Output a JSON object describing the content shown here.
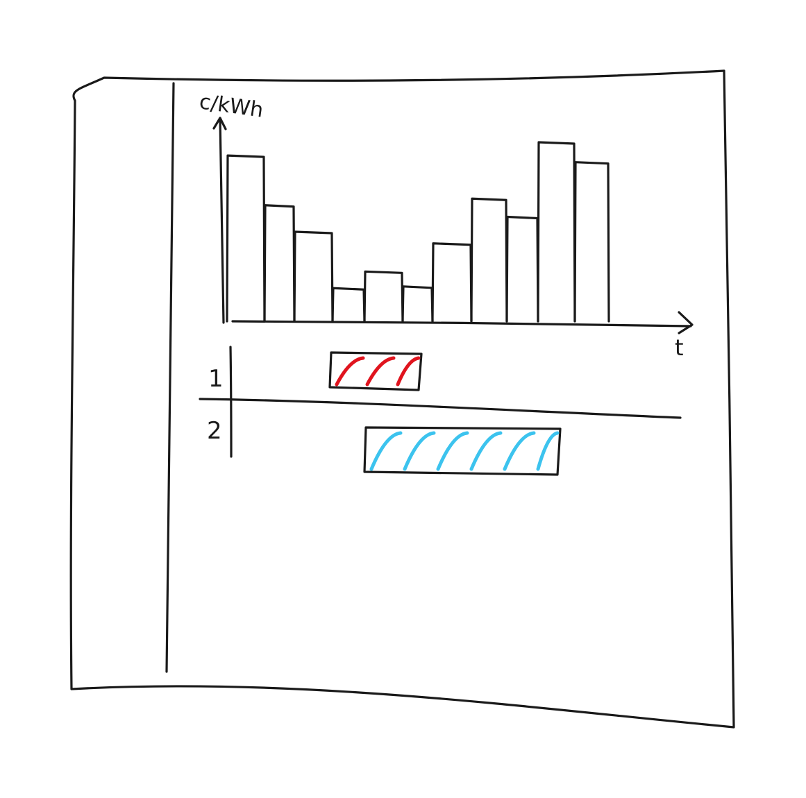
{
  "sketch": {
    "y_axis_label": "c/kWh",
    "x_axis_label": "t",
    "rows": [
      {
        "label": "1",
        "color": "#e0141e",
        "start_slot": 3,
        "end_slot": 5.6
      },
      {
        "label": "2",
        "color": "#3cc3ee",
        "start_slot": 4,
        "end_slot": 9.6
      }
    ]
  },
  "chart_data": {
    "type": "bar",
    "ylabel": "c/kWh",
    "xlabel": "t",
    "values": [
      100,
      70,
      54,
      20,
      30,
      21,
      47,
      74,
      63,
      108,
      96
    ]
  }
}
